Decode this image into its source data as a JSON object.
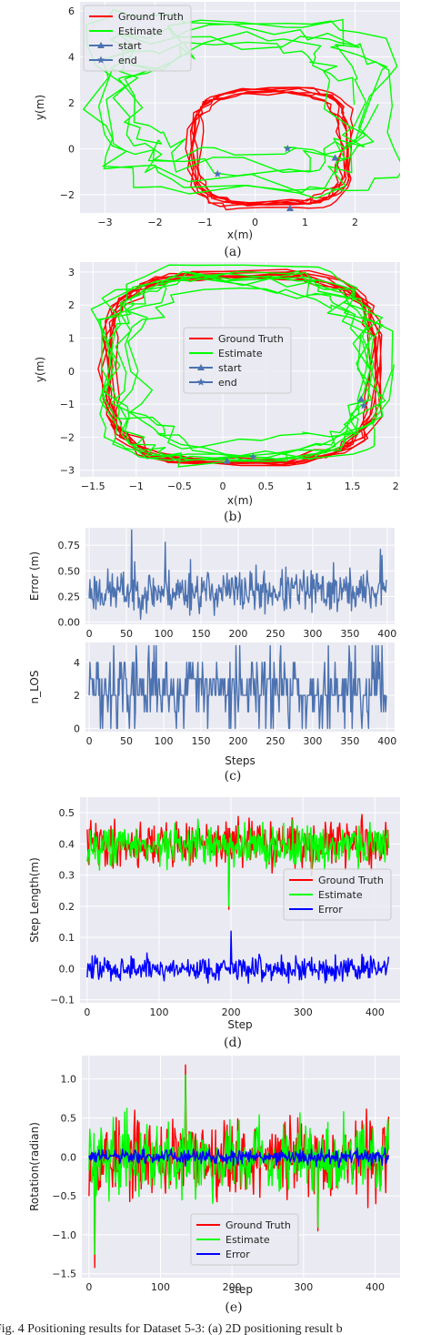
{
  "caption": "Fig. 4 Positioning results for Dataset 5-3: (a) 2D positioning result b",
  "chart_data": [
    {
      "id": "a",
      "type": "line",
      "sublabel": "(a)",
      "xlabel": "x(m)",
      "ylabel": "y(m)",
      "xlim": [
        -3.5,
        2.9
      ],
      "ylim": [
        -2.8,
        6.4
      ],
      "xticks": [
        -3,
        -2,
        -1,
        0,
        1,
        2
      ],
      "yticks": [
        -2,
        0,
        2,
        4,
        6
      ],
      "grid": true,
      "legend": "upper-left",
      "legend_entries": [
        "Ground Truth",
        "Estimate",
        "start",
        "end"
      ],
      "series": [
        {
          "name": "Ground Truth",
          "color": "#ff0000",
          "shape": "loop",
          "cx": 0.3,
          "cy": 0.0,
          "rx": 1.55,
          "ry": 2.5,
          "noise": 0.15,
          "loops": 7,
          "seed": 3
        },
        {
          "name": "Estimate",
          "color": "#00ff00",
          "shape": "loop",
          "cx": -0.3,
          "cy": 2.0,
          "rx": 2.6,
          "ry": 3.3,
          "noise": 0.6,
          "loops": 6,
          "seed": 11
        }
      ],
      "start_points": [
        [
          0.7,
          -2.6
        ],
        [
          1.6,
          -0.4
        ]
      ],
      "end_points": [
        [
          -0.75,
          -1.1
        ],
        [
          0.65,
          0.0
        ]
      ]
    },
    {
      "id": "b",
      "type": "line",
      "sublabel": "(b)",
      "xlabel": "x(m)",
      "ylabel": "y(m)",
      "xlim": [
        -1.65,
        2.05
      ],
      "ylim": [
        -3.2,
        3.3
      ],
      "xticks": [
        -1.5,
        -1.0,
        -0.5,
        0.0,
        0.5,
        1.0,
        1.5,
        2.0
      ],
      "yticks": [
        -3,
        -2,
        -1,
        0,
        1,
        2,
        3
      ],
      "grid": true,
      "legend": "center",
      "legend_entries": [
        "Ground Truth",
        "Estimate",
        "start",
        "end"
      ],
      "series": [
        {
          "name": "Ground Truth",
          "color": "#ff0000",
          "shape": "loop",
          "cx": 0.2,
          "cy": 0.1,
          "rx": 1.55,
          "ry": 2.85,
          "noise": 0.12,
          "loops": 8,
          "seed": 5
        },
        {
          "name": "Estimate",
          "color": "#00ff00",
          "shape": "loop",
          "cx": 0.15,
          "cy": 0.1,
          "rx": 1.5,
          "ry": 2.7,
          "noise": 0.3,
          "loops": 8,
          "seed": 17
        }
      ],
      "start_points": [
        [
          0.05,
          -2.72
        ],
        [
          1.6,
          -0.85
        ]
      ],
      "end_points": [
        [
          0.35,
          -2.6
        ],
        [
          1.63,
          -1.05
        ]
      ]
    },
    {
      "id": "c1",
      "type": "line",
      "sublabel": "",
      "xlabel": "",
      "ylabel": "Error (m)",
      "xlim": [
        -5,
        410
      ],
      "ylim": [
        -0.02,
        0.92
      ],
      "xticks": [
        0,
        50,
        100,
        150,
        200,
        250,
        300,
        350,
        400
      ],
      "yticks": [
        0.0,
        0.25,
        0.5,
        0.75
      ],
      "ytick_labels": [
        "0.00",
        "0.25",
        "0.50",
        "0.75"
      ],
      "grid": true,
      "series": [
        {
          "name": "",
          "color": "#4c72b0",
          "shape": "noise",
          "n": 400,
          "base": 0.3,
          "amp": 0.13,
          "min": 0.01,
          "max": 0.9,
          "seed": 23,
          "spikes": [
            [
              57,
              0.9
            ],
            [
              102,
              0.78
            ],
            [
              136,
              0.61
            ],
            [
              328,
              0.58
            ],
            [
              391,
              0.71
            ],
            [
              393,
              0.65
            ]
          ]
        }
      ]
    },
    {
      "id": "c2",
      "type": "step",
      "sublabel": "(c)",
      "xlabel": "Steps",
      "ylabel": "n_LOS",
      "xlim": [
        -5,
        410
      ],
      "ylim": [
        -0.2,
        5.2
      ],
      "xticks": [
        0,
        50,
        100,
        150,
        200,
        250,
        300,
        350,
        400
      ],
      "yticks": [
        0,
        2,
        4
      ],
      "grid": true,
      "series": [
        {
          "name": "",
          "color": "#4c72b0",
          "shape": "discrete",
          "n": 400,
          "levels": [
            0,
            1,
            2,
            3,
            4,
            5
          ],
          "weights": [
            0.06,
            0.12,
            0.4,
            0.3,
            0.08,
            0.04
          ],
          "seed": 29
        }
      ]
    },
    {
      "id": "d",
      "type": "line",
      "sublabel": "(d)",
      "xlabel": "Step",
      "ylabel": "Step Length(m)",
      "xlim": [
        -10,
        435
      ],
      "ylim": [
        -0.11,
        0.55
      ],
      "xticks": [
        0,
        100,
        200,
        300,
        400
      ],
      "yticks": [
        -0.1,
        0.0,
        0.1,
        0.2,
        0.3,
        0.4,
        0.5
      ],
      "ytick_labels": [
        "-0.1",
        "0.0",
        "0.1",
        "0.2",
        "0.3",
        "0.4",
        "0.5"
      ],
      "grid": true,
      "legend": "center-right",
      "legend_entries": [
        "Ground Truth",
        "Estimate",
        "Error"
      ],
      "series": [
        {
          "name": "Ground Truth",
          "color": "#ff0000",
          "shape": "noise",
          "n": 420,
          "base": 0.4,
          "amp": 0.045,
          "min": 0.19,
          "max": 0.52,
          "seed": 41,
          "spikes": [
            [
              197,
              0.19
            ],
            [
              312,
              0.3
            ]
          ]
        },
        {
          "name": "Estimate",
          "color": "#00ff00",
          "shape": "noise",
          "n": 420,
          "base": 0.395,
          "amp": 0.04,
          "min": 0.2,
          "max": 0.5,
          "seed": 43,
          "spikes": [
            [
              197,
              0.2
            ],
            [
              312,
              0.31
            ]
          ]
        },
        {
          "name": "Error",
          "color": "#0000ff",
          "shape": "noise",
          "n": 420,
          "base": 0.0,
          "amp": 0.025,
          "min": -0.08,
          "max": 0.12,
          "seed": 47,
          "spikes": [
            [
              200,
              0.12
            ]
          ]
        }
      ]
    },
    {
      "id": "e",
      "type": "line",
      "sublabel": "(e)",
      "xlabel": "step",
      "ylabel": "Rotation(radian)",
      "xlim": [
        -10,
        435
      ],
      "ylim": [
        -1.55,
        1.3
      ],
      "xticks": [
        0,
        100,
        200,
        300,
        400
      ],
      "yticks": [
        -1.5,
        -1.0,
        -0.5,
        0.0,
        0.5,
        1.0
      ],
      "ytick_labels": [
        "-1.5",
        "-1.0",
        "-0.5",
        "0.0",
        "0.5",
        "1.0"
      ],
      "grid": true,
      "legend": "lower-center",
      "legend_entries": [
        "Ground Truth",
        "Estimate",
        "Error"
      ],
      "series": [
        {
          "name": "Ground Truth",
          "color": "#ff0000",
          "shape": "noise",
          "n": 420,
          "base": 0.0,
          "amp": 0.3,
          "min": -1.42,
          "max": 1.18,
          "seed": 53,
          "spikes": [
            [
              8,
              -1.42
            ],
            [
              135,
              1.18
            ],
            [
              320,
              -0.95
            ]
          ]
        },
        {
          "name": "Estimate",
          "color": "#00ff00",
          "shape": "noise",
          "n": 420,
          "base": 0.0,
          "amp": 0.28,
          "min": -1.3,
          "max": 1.05,
          "seed": 59,
          "spikes": [
            [
              8,
              -1.25
            ],
            [
              135,
              1.05
            ],
            [
              320,
              -0.9
            ]
          ]
        },
        {
          "name": "Error",
          "color": "#0000ff",
          "shape": "noise",
          "n": 420,
          "base": 0.0,
          "amp": 0.06,
          "min": -0.3,
          "max": 0.2,
          "seed": 61,
          "spikes": []
        }
      ]
    }
  ]
}
